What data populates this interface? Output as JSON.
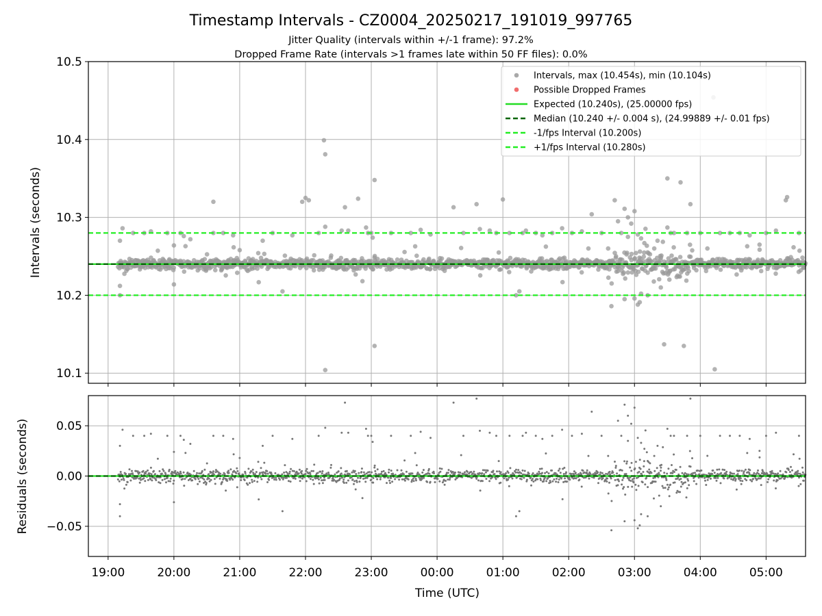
{
  "figure": {
    "title": "Timestamp Intervals - CZ0004_20250217_191019_997765",
    "subtitle_1": "Jitter Quality (intervals within +/-1 frame): 97.2%",
    "subtitle_2": "Dropped Frame Rate (intervals >1 frames late within 50 FF files): 0.0%",
    "xlabel": "Time (UTC)"
  },
  "colors": {
    "intervals": "#999999",
    "dropped": "#ee5555",
    "expected": "#22dd22",
    "median": "#006400",
    "fps_bounds": "#22ee22",
    "residuals": "#777777",
    "grid": "#b0b0b0"
  },
  "chart_data": [
    {
      "type": "scatter",
      "panel": "top",
      "ylabel": "Intervals (seconds)",
      "xlabel": "",
      "x_unit": "hours since 19:00 UTC on the time axis",
      "xlim": [
        -0.3,
        10.6
      ],
      "ylim": [
        10.087,
        10.5
      ],
      "y_ticks": [
        10.1,
        10.2,
        10.3,
        10.4,
        10.5
      ],
      "grid": true,
      "legend_position": "top-right",
      "legend": [
        {
          "label": "Intervals, max (10.454s), min (10.104s)",
          "kind": "marker",
          "color": "#999999"
        },
        {
          "label": "Possible Dropped Frames",
          "kind": "marker",
          "color": "#ee5555"
        },
        {
          "label": "Expected (10.240s), (25.00000 fps)",
          "kind": "solid",
          "color": "#22dd22"
        },
        {
          "label": "Median (10.240 +/- 0.004 s), (24.99889 +/- 0.01 fps)",
          "kind": "dashed",
          "color": "#006400"
        },
        {
          "label": "-1/fps Interval (10.200s)",
          "kind": "dashed",
          "color": "#22ee22"
        },
        {
          "label": "+1/fps Interval (10.280s)",
          "kind": "dashed",
          "color": "#22ee22"
        }
      ],
      "reference_lines": {
        "expected": 10.24,
        "median": 10.24,
        "minus_1fps": 10.2,
        "plus_1fps": 10.28
      },
      "max_interval": 10.454,
      "min_interval": 10.104,
      "core_band": {
        "center": 10.24,
        "typical_halfwidth": 0.006,
        "t_start": 0.15,
        "t_end": 10.6
      },
      "outliers": [
        [
          0.18,
          10.27
        ],
        [
          0.22,
          10.286
        ],
        [
          0.18,
          10.212
        ],
        [
          0.18,
          10.2
        ],
        [
          0.38,
          10.28
        ],
        [
          0.55,
          10.28
        ],
        [
          0.65,
          10.282
        ],
        [
          0.9,
          10.28
        ],
        [
          1.0,
          10.264
        ],
        [
          1.0,
          10.214
        ],
        [
          1.1,
          10.28
        ],
        [
          1.15,
          10.276
        ],
        [
          1.25,
          10.272
        ],
        [
          1.6,
          10.32
        ],
        [
          1.6,
          10.28
        ],
        [
          1.75,
          10.28
        ],
        [
          1.9,
          10.277
        ],
        [
          2.0,
          10.258
        ],
        [
          2.35,
          10.27
        ],
        [
          2.5,
          10.28
        ],
        [
          2.8,
          10.277
        ],
        [
          2.95,
          10.32
        ],
        [
          3.0,
          10.325
        ],
        [
          3.05,
          10.322
        ],
        [
          3.2,
          10.28
        ],
        [
          3.3,
          10.288
        ],
        [
          3.28,
          10.399
        ],
        [
          3.3,
          10.381
        ],
        [
          3.3,
          10.104
        ],
        [
          3.55,
          10.283
        ],
        [
          3.6,
          10.313
        ],
        [
          3.65,
          10.283
        ],
        [
          3.8,
          10.324
        ],
        [
          3.95,
          10.28
        ],
        [
          3.92,
          10.287
        ],
        [
          4.0,
          10.28
        ],
        [
          4.02,
          10.274
        ],
        [
          4.05,
          10.348
        ],
        [
          4.05,
          10.135
        ],
        [
          4.3,
          10.28
        ],
        [
          4.6,
          10.28
        ],
        [
          4.75,
          10.284
        ],
        [
          4.9,
          10.278
        ],
        [
          5.25,
          10.313
        ],
        [
          5.4,
          10.28
        ],
        [
          5.6,
          10.317
        ],
        [
          5.65,
          10.285
        ],
        [
          5.8,
          10.283
        ],
        [
          5.9,
          10.28
        ],
        [
          6.0,
          10.323
        ],
        [
          6.1,
          10.28
        ],
        [
          6.3,
          10.28
        ],
        [
          6.35,
          10.283
        ],
        [
          6.5,
          10.28
        ],
        [
          6.6,
          10.277
        ],
        [
          6.75,
          10.28
        ],
        [
          6.9,
          10.286
        ],
        [
          7.05,
          10.28
        ],
        [
          7.2,
          10.282
        ],
        [
          7.3,
          10.26
        ],
        [
          7.35,
          10.304
        ],
        [
          7.5,
          10.28
        ],
        [
          7.6,
          10.26
        ],
        [
          7.7,
          10.322
        ],
        [
          7.75,
          10.295
        ],
        [
          7.8,
          10.28
        ],
        [
          7.85,
          10.311
        ],
        [
          7.9,
          10.3
        ],
        [
          7.95,
          10.292
        ],
        [
          7.9,
          10.275
        ],
        [
          7.65,
          10.186
        ],
        [
          8.0,
          10.308
        ],
        [
          8.05,
          10.278
        ],
        [
          8.1,
          10.273
        ],
        [
          8.15,
          10.267
        ],
        [
          8.2,
          10.255
        ],
        [
          7.85,
          10.195
        ],
        [
          8.0,
          10.196
        ],
        [
          8.05,
          10.188
        ],
        [
          8.08,
          10.191
        ],
        [
          8.1,
          10.202
        ],
        [
          8.2,
          10.2
        ],
        [
          8.3,
          10.26
        ],
        [
          8.35,
          10.27
        ],
        [
          8.4,
          10.21
        ],
        [
          8.5,
          10.287
        ],
        [
          8.5,
          10.35
        ],
        [
          8.45,
          10.137
        ],
        [
          8.55,
          10.28
        ],
        [
          8.6,
          10.28
        ],
        [
          8.7,
          10.345
        ],
        [
          8.75,
          10.135
        ],
        [
          8.8,
          10.28
        ],
        [
          8.85,
          10.317
        ],
        [
          9.0,
          10.28
        ],
        [
          9.2,
          10.454
        ],
        [
          9.22,
          10.105
        ],
        [
          9.3,
          10.28
        ],
        [
          9.45,
          10.28
        ],
        [
          9.6,
          10.28
        ],
        [
          9.75,
          10.277
        ],
        [
          9.9,
          10.265
        ],
        [
          10.0,
          10.28
        ],
        [
          10.15,
          10.283
        ],
        [
          10.3,
          10.322
        ],
        [
          10.32,
          10.326
        ],
        [
          10.5,
          10.28
        ],
        [
          2.65,
          10.205
        ],
        [
          6.2,
          10.2
        ],
        [
          6.25,
          10.205
        ]
      ]
    },
    {
      "type": "scatter",
      "panel": "bottom",
      "ylabel": "Residuals (seconds)",
      "xlabel": "Time (UTC)",
      "xlim": [
        -0.3,
        10.6
      ],
      "ylim": [
        -0.08,
        0.08
      ],
      "y_ticks": [
        -0.05,
        0.0,
        0.05
      ],
      "y_tick_labels": [
        "−0.05",
        "0.00",
        "0.05"
      ],
      "x_ticks": [
        0,
        1,
        2,
        3,
        4,
        5,
        6,
        7,
        8,
        9,
        10
      ],
      "x_tick_labels": [
        "19:00",
        "20:00",
        "21:00",
        "22:00",
        "23:00",
        "00:00",
        "01:00",
        "02:00",
        "03:00",
        "04:00",
        "05:00"
      ],
      "grid": true,
      "reference_lines": {
        "zero": 0.0
      }
    }
  ]
}
